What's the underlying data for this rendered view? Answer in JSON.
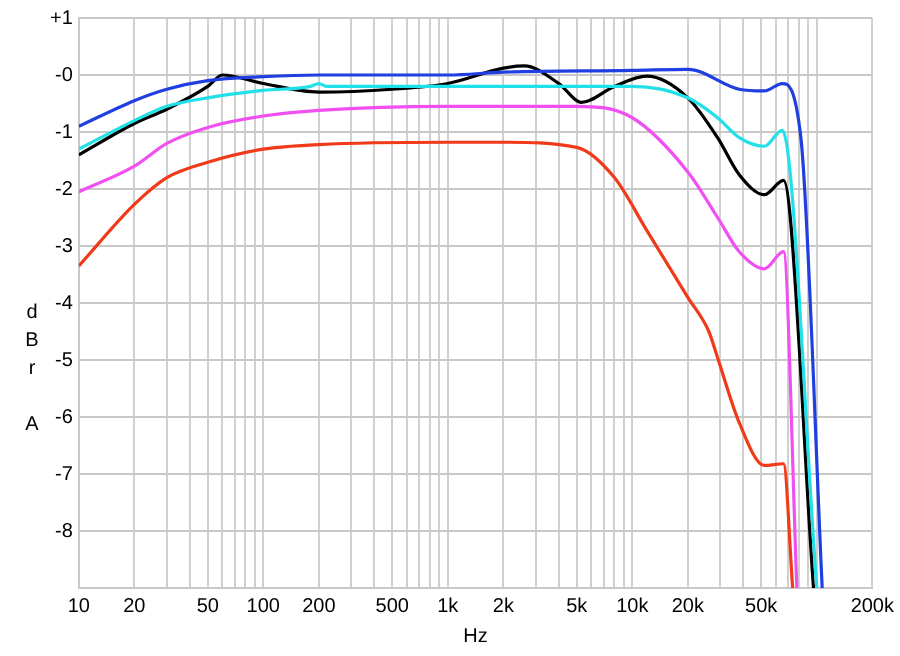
{
  "chart_data": {
    "type": "line",
    "xlabel": "Hz",
    "ylabel": "dBr A",
    "log": "x",
    "grid": true,
    "legend": false,
    "marker": "none",
    "line_style": "solid",
    "xlim": [
      10,
      200000
    ],
    "ylim": [
      -9,
      1
    ],
    "xticks": [
      10,
      20,
      {
        "value": 30,
        "label": null
      },
      {
        "value": 40,
        "label": null
      },
      50,
      {
        "value": 60,
        "label": null
      },
      {
        "value": 70,
        "label": null
      },
      {
        "value": 80,
        "label": null
      },
      {
        "value": 90,
        "label": null
      },
      100,
      200,
      {
        "value": 300,
        "label": null
      },
      {
        "value": 400,
        "label": null
      },
      500,
      {
        "value": 600,
        "label": null
      },
      {
        "value": 700,
        "label": null
      },
      {
        "value": 800,
        "label": null
      },
      {
        "value": 900,
        "label": null
      },
      {
        "value": 1000,
        "label": "1k"
      },
      {
        "value": 2000,
        "label": "2k"
      },
      {
        "value": 3000,
        "label": null
      },
      {
        "value": 4000,
        "label": null
      },
      {
        "value": 5000,
        "label": "5k"
      },
      {
        "value": 6000,
        "label": null
      },
      {
        "value": 7000,
        "label": null
      },
      {
        "value": 8000,
        "label": null
      },
      {
        "value": 9000,
        "label": null
      },
      {
        "value": 10000,
        "label": "10k"
      },
      {
        "value": 20000,
        "label": "20k"
      },
      {
        "value": 30000,
        "label": null
      },
      {
        "value": 40000,
        "label": null
      },
      {
        "value": 50000,
        "label": "50k"
      },
      {
        "value": 60000,
        "label": null
      },
      {
        "value": 70000,
        "label": null
      },
      {
        "value": 80000,
        "label": null
      },
      {
        "value": 90000,
        "label": null
      },
      {
        "value": 100000,
        "label": null
      },
      {
        "value": 200000,
        "label": "200k"
      }
    ],
    "yticks": [
      {
        "value": 1,
        "label": "+1"
      },
      {
        "value": 0,
        "label": "-0"
      },
      -1,
      -2,
      -3,
      -4,
      -5,
      -6,
      -7,
      -8
    ],
    "series": [
      {
        "color": "#1f3fe0",
        "x": [
          10,
          20,
          30,
          50,
          100,
          200,
          1000,
          2000,
          10000,
          20000,
          38000,
          52000,
          65000,
          82000,
          107000
        ],
        "values": [
          -0.9,
          -0.45,
          -0.25,
          -0.1,
          -0.03,
          0,
          0,
          0.05,
          0.08,
          0.1,
          -0.25,
          -0.28,
          -0.15,
          -1.1,
          -9
        ]
      },
      {
        "color": "#22e0e8",
        "x": [
          10,
          20,
          30,
          50,
          100,
          180,
          200,
          220,
          1000,
          10000,
          20000,
          29000,
          38000,
          52000,
          65000,
          100000
        ],
        "values": [
          -1.3,
          -0.8,
          -0.55,
          -0.4,
          -0.27,
          -0.2,
          -0.15,
          -0.2,
          -0.2,
          -0.2,
          -0.4,
          -0.75,
          -1.1,
          -1.25,
          -0.97,
          -9
        ]
      },
      {
        "color": "#000000",
        "x": [
          10,
          20,
          30,
          50,
          60,
          100,
          200,
          500,
          1000,
          2000,
          2600,
          4000,
          5300,
          8000,
          12000,
          20000,
          29000,
          38000,
          52000,
          66000,
          96000
        ],
        "values": [
          -1.4,
          -0.85,
          -0.6,
          -0.2,
          0,
          -0.15,
          -0.3,
          -0.25,
          -0.15,
          0.12,
          0.16,
          -0.15,
          -0.48,
          -0.2,
          -0.02,
          -0.4,
          -1.1,
          -1.75,
          -2.1,
          -1.85,
          -9
        ]
      },
      {
        "color": "#f050f0",
        "x": [
          10,
          20,
          30,
          50,
          100,
          200,
          1000,
          5000,
          10000,
          20000,
          29000,
          38000,
          52000,
          66000,
          78000
        ],
        "values": [
          -2.05,
          -1.6,
          -1.2,
          -0.92,
          -0.72,
          -0.62,
          -0.55,
          -0.55,
          -0.75,
          -1.7,
          -2.5,
          -3.1,
          -3.4,
          -3.1,
          -9
        ]
      },
      {
        "color": "#f03a1a",
        "x": [
          10,
          20,
          30,
          50,
          100,
          200,
          1000,
          2000,
          5000,
          8000,
          12000,
          20000,
          26000,
          29000,
          38000,
          52000,
          66000,
          74000
        ],
        "values": [
          -3.35,
          -2.27,
          -1.8,
          -1.53,
          -1.3,
          -1.22,
          -1.18,
          -1.18,
          -1.27,
          -1.8,
          -2.73,
          -3.9,
          -4.5,
          -4.96,
          -6.1,
          -6.85,
          -6.82,
          -9
        ]
      }
    ]
  }
}
